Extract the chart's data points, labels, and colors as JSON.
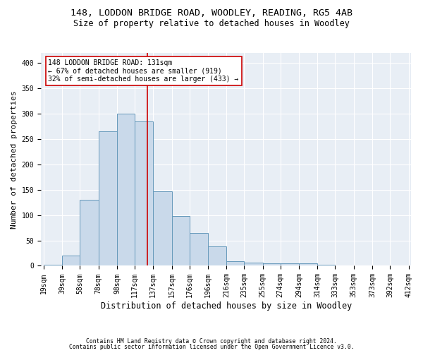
{
  "title1": "148, LODDON BRIDGE ROAD, WOODLEY, READING, RG5 4AB",
  "title2": "Size of property relative to detached houses in Woodley",
  "xlabel": "Distribution of detached houses by size in Woodley",
  "ylabel": "Number of detached properties",
  "footnote1": "Contains HM Land Registry data © Crown copyright and database right 2024.",
  "footnote2": "Contains public sector information licensed under the Open Government Licence v3.0.",
  "bin_edges": [
    19,
    39,
    58,
    78,
    98,
    117,
    137,
    157,
    176,
    196,
    216,
    235,
    255,
    274,
    294,
    314,
    333,
    353,
    373,
    392,
    412
  ],
  "counts": [
    2,
    20,
    130,
    265,
    300,
    285,
    147,
    98,
    65,
    38,
    9,
    6,
    5,
    5,
    5,
    2,
    0,
    0,
    0,
    0
  ],
  "bar_color": "#c9d9ea",
  "bar_edge_color": "#6699bb",
  "vline_x": 131,
  "vline_color": "#cc0000",
  "annotation_text": "148 LODDON BRIDGE ROAD: 131sqm\n← 67% of detached houses are smaller (919)\n32% of semi-detached houses are larger (433) →",
  "annotation_box_color": "#cc0000",
  "annotation_facecolor": "#ffffff",
  "ylim": [
    0,
    420
  ],
  "yticks": [
    0,
    50,
    100,
    150,
    200,
    250,
    300,
    350,
    400
  ],
  "background_color": "#e8eef5",
  "grid_color": "#ffffff",
  "title1_fontsize": 9.5,
  "title2_fontsize": 8.5,
  "xlabel_fontsize": 8.5,
  "ylabel_fontsize": 8,
  "tick_fontsize": 7,
  "footnote_fontsize": 5.8,
  "annotation_fontsize": 7
}
